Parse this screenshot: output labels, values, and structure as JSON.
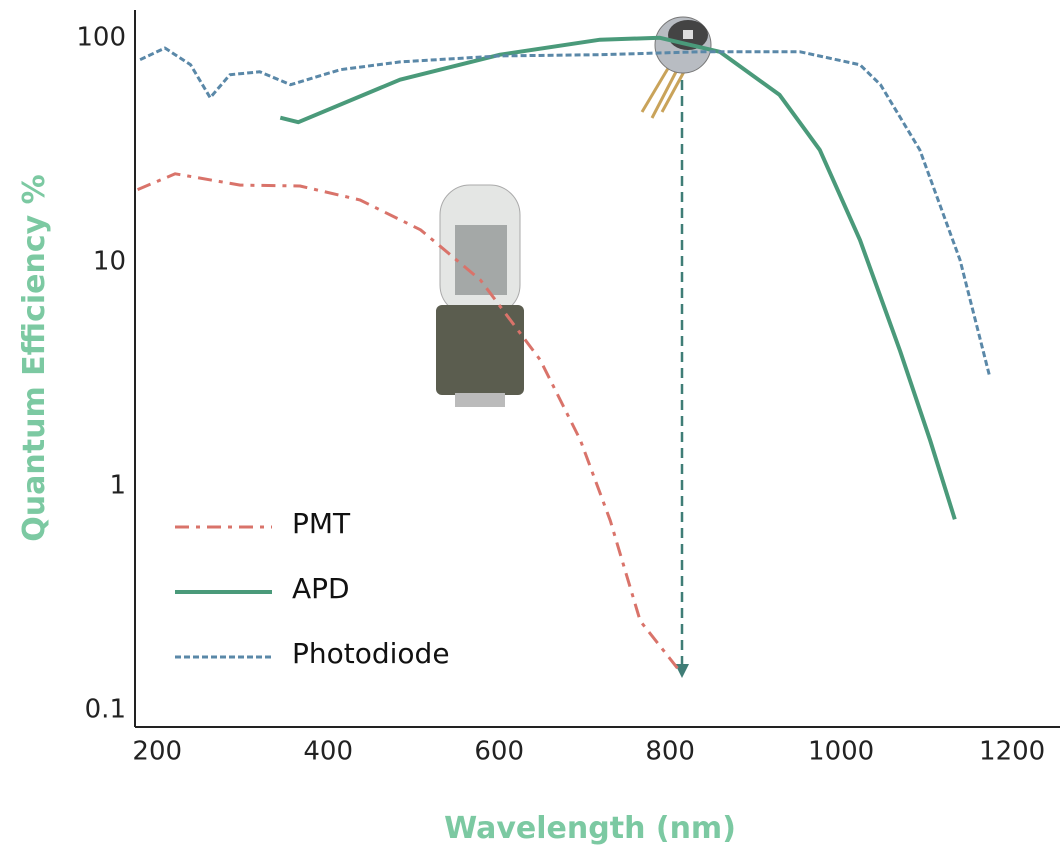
{
  "chart_data": {
    "type": "line",
    "yscale": "log",
    "x_label": "Wavelength (nm)",
    "y_label": "Quantum Efficiency %",
    "xlim": [
      174,
      1256
    ],
    "xticks": [
      200,
      400,
      600,
      800,
      1000,
      1200
    ],
    "ylim": [
      0.084,
      133
    ],
    "yticks": [
      100,
      10,
      1,
      0.1
    ],
    "legend": "lower-left",
    "series": [
      {
        "name": "PMT",
        "color": "#d9736a",
        "style": "dash-dot",
        "x": [
          177,
          221,
          297,
          367,
          437,
          508,
          578,
          648,
          695,
          730,
          765,
          812
        ],
        "values": [
          21,
          24.7,
          22,
          21.8,
          18.9,
          13.9,
          8.3,
          3.65,
          1.6,
          0.7,
          0.25,
          0.148
        ]
      },
      {
        "name": "APD",
        "color": "#4a9a7a",
        "style": "solid",
        "x": [
          344,
          365,
          484,
          601,
          718,
          788,
          858,
          928,
          975,
          1022,
          1069,
          1104,
          1133
        ],
        "values": [
          44,
          42,
          65,
          84,
          98,
          100,
          86.6,
          55.6,
          31.6,
          12.5,
          4.0,
          1.6,
          0.71
        ]
      },
      {
        "name": "Photodiode",
        "color": "#5a88a8",
        "style": "dashed",
        "x": [
          180,
          209,
          239,
          262,
          285,
          320,
          356,
          414,
          484,
          601,
          718,
          835,
          952,
          1022,
          1046,
          1092,
          1139,
          1174
        ],
        "values": [
          79.8,
          90,
          75.7,
          54,
          68.4,
          70.5,
          61.7,
          72,
          78,
          83,
          84,
          86.6,
          86.6,
          75.7,
          61.7,
          31.6,
          10.2,
          3.05
        ]
      }
    ]
  }
}
